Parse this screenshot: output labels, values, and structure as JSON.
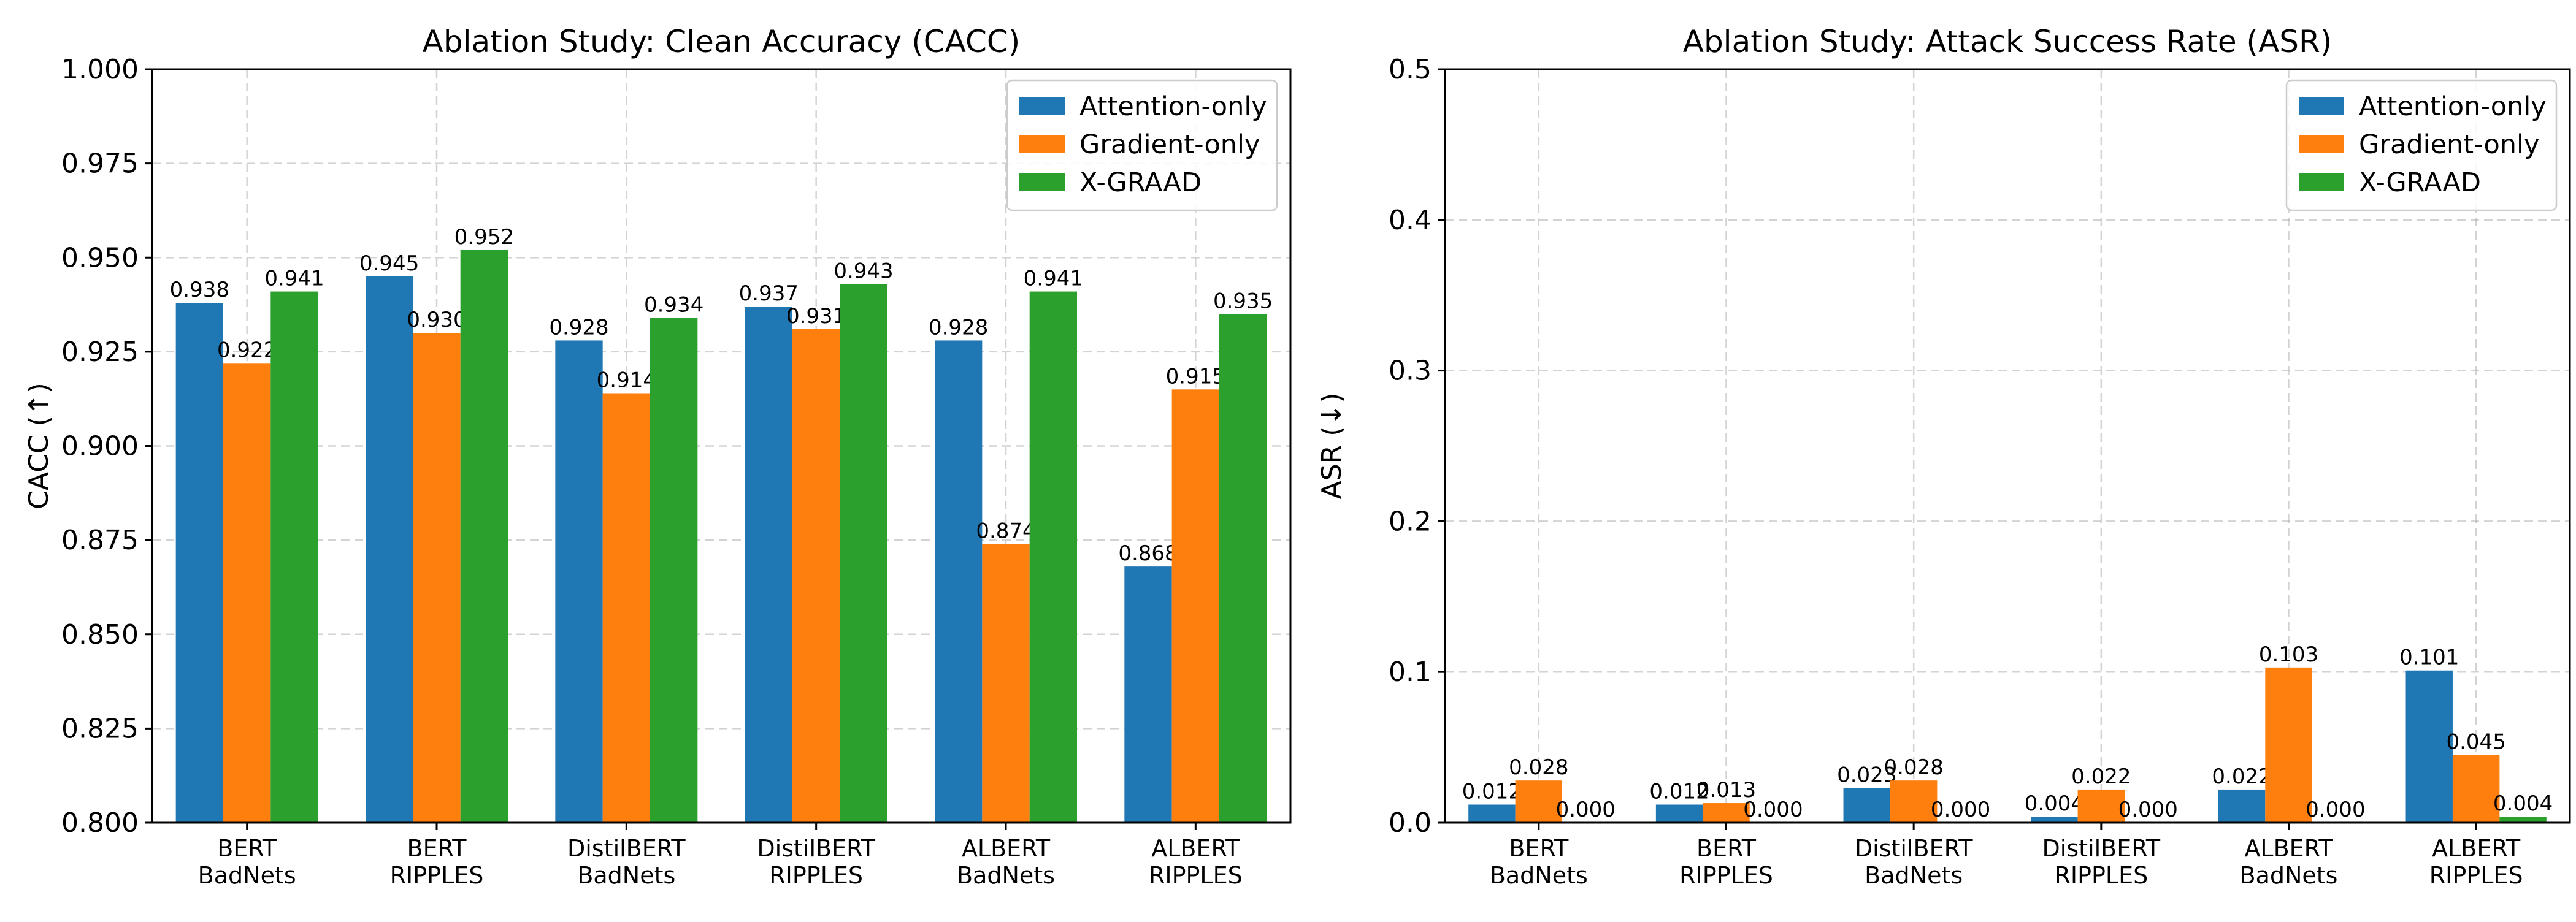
{
  "chart_data": [
    {
      "type": "bar",
      "title": "Ablation Study: Clean Accuracy (CACC)",
      "xlabel": "",
      "ylabel": "CACC (↑)",
      "ylim": [
        0.8,
        1.0
      ],
      "yticks": [
        "0.800",
        "0.825",
        "0.850",
        "0.875",
        "0.900",
        "0.925",
        "0.950",
        "0.975",
        "1.000"
      ],
      "grid": true,
      "legend_position": "top-right",
      "categories": [
        [
          "BERT",
          "BadNets"
        ],
        [
          "BERT",
          "RIPPLES"
        ],
        [
          "DistilBERT",
          "BadNets"
        ],
        [
          "DistilBERT",
          "RIPPLES"
        ],
        [
          "ALBERT",
          "BadNets"
        ],
        [
          "ALBERT",
          "RIPPLES"
        ]
      ],
      "series": [
        {
          "name": "Attention-only",
          "color": "#1f77b4",
          "values": [
            0.938,
            0.945,
            0.928,
            0.937,
            0.928,
            0.868
          ],
          "labels": [
            "0.938",
            "0.945",
            "0.928",
            "0.937",
            "0.928",
            "0.868"
          ]
        },
        {
          "name": "Gradient-only",
          "color": "#ff7f0e",
          "values": [
            0.922,
            0.93,
            0.914,
            0.931,
            0.874,
            0.915
          ],
          "labels": [
            "0.922",
            "0.930",
            "0.914",
            "0.931",
            "0.874",
            "0.915"
          ]
        },
        {
          "name": "X-GRAAD",
          "color": "#2ca02c",
          "values": [
            0.941,
            0.952,
            0.934,
            0.943,
            0.941,
            0.935
          ],
          "labels": [
            "0.941",
            "0.952",
            "0.934",
            "0.943",
            "0.941",
            "0.935"
          ]
        }
      ]
    },
    {
      "type": "bar",
      "title": "Ablation Study: Attack Success Rate (ASR)",
      "xlabel": "",
      "ylabel": "ASR (↓)",
      "ylim": [
        0.0,
        0.5
      ],
      "yticks": [
        "0.0",
        "0.1",
        "0.2",
        "0.3",
        "0.4",
        "0.5"
      ],
      "grid": true,
      "legend_position": "top-right",
      "categories": [
        [
          "BERT",
          "BadNets"
        ],
        [
          "BERT",
          "RIPPLES"
        ],
        [
          "DistilBERT",
          "BadNets"
        ],
        [
          "DistilBERT",
          "RIPPLES"
        ],
        [
          "ALBERT",
          "BadNets"
        ],
        [
          "ALBERT",
          "RIPPLES"
        ]
      ],
      "series": [
        {
          "name": "Attention-only",
          "color": "#1f77b4",
          "values": [
            0.012,
            0.012,
            0.023,
            0.004,
            0.022,
            0.101
          ],
          "labels": [
            "0.012",
            "0.012",
            "0.023",
            "0.004",
            "0.022",
            "0.101"
          ]
        },
        {
          "name": "Gradient-only",
          "color": "#ff7f0e",
          "values": [
            0.028,
            0.013,
            0.028,
            0.022,
            0.103,
            0.045
          ],
          "labels": [
            "0.028",
            "0.013",
            "0.028",
            "0.022",
            "0.103",
            "0.045"
          ]
        },
        {
          "name": "X-GRAAD",
          "color": "#2ca02c",
          "values": [
            0.0,
            0.0,
            0.0,
            0.0,
            0.0,
            0.004
          ],
          "labels": [
            "0.000",
            "0.000",
            "0.000",
            "0.000",
            "0.000",
            "0.004"
          ]
        }
      ]
    }
  ]
}
